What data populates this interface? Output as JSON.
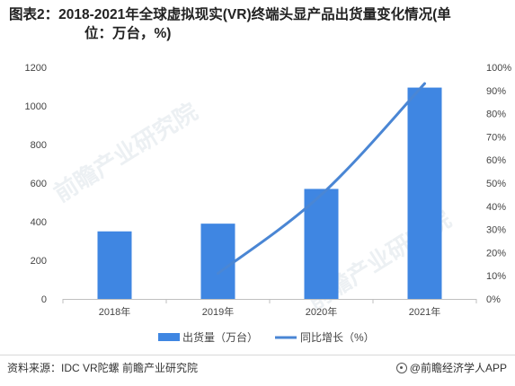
{
  "title": {
    "line1": "图表2：2018-2021年全球虚拟现实(VR)终端头显产品出货量变化情况(单",
    "line2": "位：万台，%)"
  },
  "chart_data": {
    "type": "bar",
    "categories": [
      "2018年",
      "2019年",
      "2020年",
      "2021年"
    ],
    "series": [
      {
        "name": "出货量（万台）",
        "type": "bar",
        "axis": "left",
        "color": "#3f86e2",
        "values": [
          350,
          390,
          570,
          1095
        ]
      },
      {
        "name": "同比增长（%）",
        "type": "line",
        "axis": "right",
        "color": "#4a86d4",
        "values": [
          null,
          11,
          45,
          93
        ]
      }
    ],
    "y_left": {
      "min": 0,
      "max": 1200,
      "ticks": [
        "0",
        "200",
        "400",
        "600",
        "800",
        "1000",
        "1200"
      ]
    },
    "y_right": {
      "min": 0,
      "max": 100,
      "ticks": [
        "0%",
        "10%",
        "20%",
        "30%",
        "40%",
        "50%",
        "60%",
        "70%",
        "80%",
        "90%",
        "100%"
      ]
    },
    "legend_position": "bottom",
    "grid": false
  },
  "legend": {
    "bar_label": "出货量（万台）",
    "line_label": "同比增长（%）"
  },
  "footer": {
    "source": "资料来源：IDC VR陀螺 前瞻产业研究院",
    "brand": "@前瞻经济学人APP"
  },
  "watermark": {
    "text": "前瞻产业研究院"
  }
}
